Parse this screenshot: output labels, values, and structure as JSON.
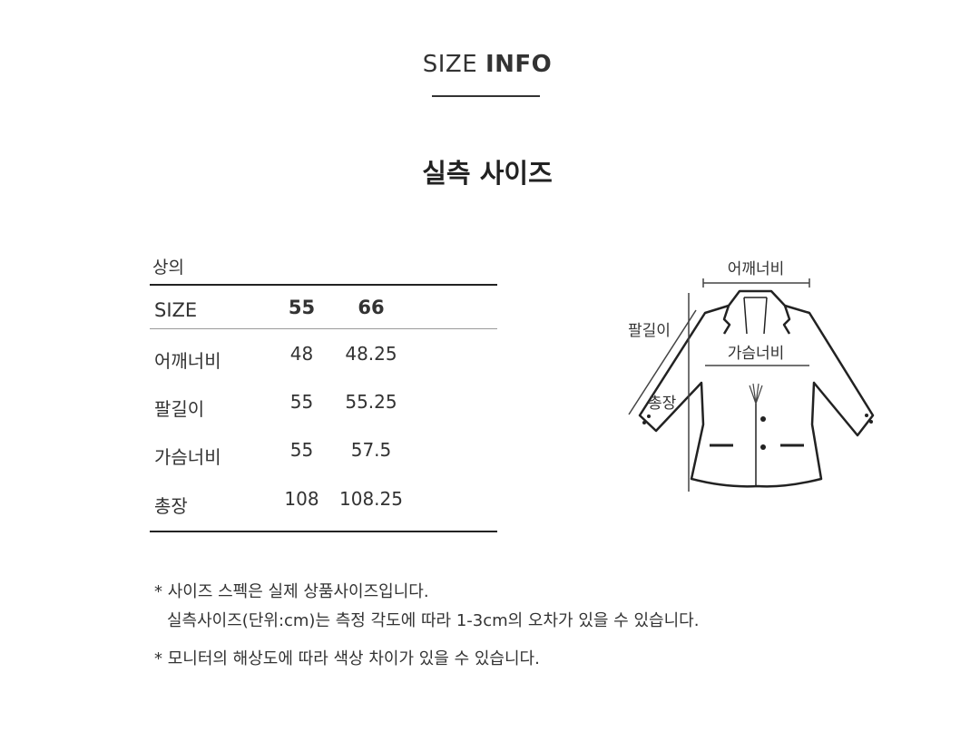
{
  "header": {
    "title_light": "SIZE",
    "title_bold": "INFO",
    "subtitle": "실측 사이즈"
  },
  "table": {
    "category": "상의",
    "columns": [
      "SIZE",
      "55",
      "66"
    ],
    "rows": [
      {
        "label": "어깨너비",
        "s55": "48",
        "s66": "48.25"
      },
      {
        "label": "팔길이",
        "s55": "55",
        "s66": "55.25"
      },
      {
        "label": "가슴너비",
        "s55": "55",
        "s66": "57.5"
      },
      {
        "label": "총장",
        "s55": "108",
        "s66": "108.25"
      }
    ]
  },
  "diagram": {
    "shoulder": "어깨너비",
    "sleeve": "팔길이",
    "chest": "가슴너비",
    "length": "총장"
  },
  "notes": [
    "* 사이즈 스펙은 실제 상품사이즈입니다.",
    "실측사이즈(단위:cm)는 측정 각도에 따라 1-3cm의 오차가 있을 수 있습니다.",
    "* 모니터의 해상도에 따라 색상 차이가 있을 수 있습니다."
  ]
}
